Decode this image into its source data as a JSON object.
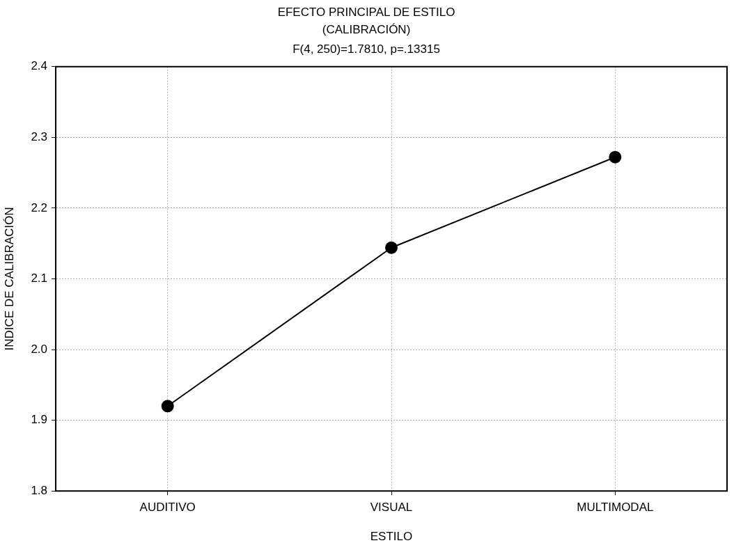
{
  "chart_data": {
    "type": "line",
    "title": "EFECTO PRINCIPAL DE ESTILO\n(CALIBRACIÓN)",
    "subtitle": "F(4, 250)=1.7810, p=.13315",
    "xlabel": "ESTILO",
    "ylabel": "INDICE DE CALIBRACIÓN",
    "categories": [
      "AUDITIVO",
      "VISUAL",
      "MULTIMODAL"
    ],
    "series": [
      {
        "color": "#000000",
        "values": [
          1.92,
          2.144,
          2.272
        ]
      }
    ],
    "ylim": [
      1.8,
      2.4
    ],
    "yticks": [
      1.8,
      1.9,
      {
        "value": 2,
        "label": "2.0"
      },
      2.1,
      2.2,
      2.3,
      2.4
    ],
    "grid": true,
    "legend": false,
    "marker": "circle",
    "line_style": "solid"
  }
}
